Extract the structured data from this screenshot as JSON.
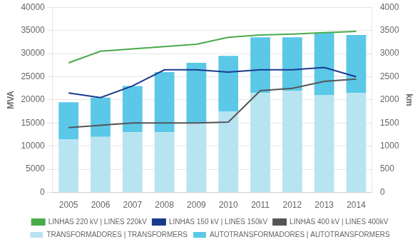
{
  "chart_data": {
    "type": "bar",
    "categories": [
      "2005",
      "2006",
      "2007",
      "2008",
      "2009",
      "2010",
      "2011",
      "2012",
      "2013",
      "2014"
    ],
    "series": [
      {
        "name": "TRANSFORMADORES | TRANSFORMERS",
        "type": "bar",
        "color": "#b8e4f2",
        "values": [
          11500,
          12000,
          13000,
          13000,
          15000,
          17500,
          21500,
          22000,
          21000,
          21500
        ]
      },
      {
        "name": "AUTOTRANSFORMADORES | AUTOTRANSFORMERS",
        "type": "bar",
        "color": "#5bc8e8",
        "values": [
          8000,
          8500,
          10000,
          13000,
          13000,
          12000,
          12000,
          11500,
          13500,
          12500
        ]
      },
      {
        "name": "LINHAS 220 kV | LINES 220kV",
        "type": "line",
        "axis": "y2",
        "color": "#4aaa4a",
        "values": [
          2800,
          3050,
          3100,
          3150,
          3200,
          3350,
          3400,
          3420,
          3450,
          3480
        ]
      },
      {
        "name": "LINHAS 150 kV | LINES 150kV",
        "type": "line",
        "axis": "y2",
        "color": "#1a3a8c",
        "values": [
          2150,
          2050,
          2300,
          2650,
          2650,
          2600,
          2650,
          2650,
          2700,
          2500
        ]
      },
      {
        "name": "LINHAS 400 kV | LINES 400kV",
        "type": "line",
        "axis": "y2",
        "color": "#555555",
        "values": [
          1400,
          1450,
          1500,
          1500,
          1500,
          1520,
          2200,
          2250,
          2400,
          2450
        ]
      }
    ],
    "ylabel": "MVA",
    "y2label": "km",
    "ylim": [
      0,
      40000
    ],
    "yticks": [
      0,
      5000,
      10000,
      15000,
      20000,
      25000,
      30000,
      35000,
      40000
    ],
    "y2lim": [
      0,
      4000
    ],
    "y2ticks": [
      0,
      500,
      1000,
      1500,
      2000,
      2500,
      3000,
      3500,
      4000
    ],
    "stacked": true,
    "grid": true,
    "legend": "bottom"
  }
}
